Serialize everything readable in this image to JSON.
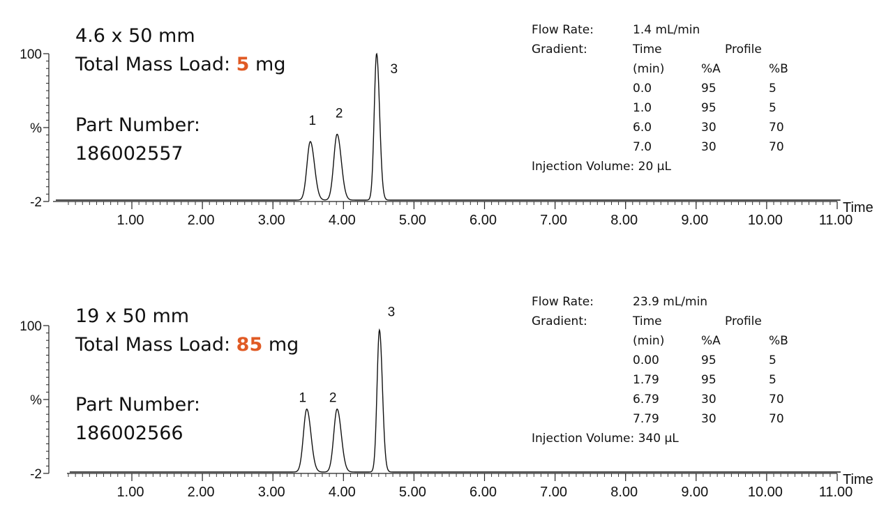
{
  "chart_data": [
    {
      "type": "line",
      "column": "4.6 x 50 mm",
      "mass_load_label": "Total Mass Load: ",
      "mass_load_value": "5",
      "mass_load_unit": " mg",
      "part_number_label": "Part Number:",
      "part_number": "186002557",
      "xlabel": "Time",
      "ylabel": "%",
      "y_ticks": [
        "100",
        "%",
        "-2"
      ],
      "x_ticks": [
        "1.00",
        "2.00",
        "3.00",
        "4.00",
        "5.00",
        "6.00",
        "7.00",
        "8.00",
        "9.00",
        "10.00",
        "11.00"
      ],
      "xlim": [
        0.0,
        11.0
      ],
      "ylim": [
        -2,
        100
      ],
      "series": [
        {
          "peaks": [
            {
              "label": "1",
              "rt": 3.53,
              "height": 40
            },
            {
              "label": "2",
              "rt": 3.91,
              "height": 45
            },
            {
              "label": "3",
              "rt": 4.47,
              "height": 100
            }
          ]
        }
      ],
      "method": {
        "flow_rate_label": "Flow Rate:",
        "flow_rate": "1.4 mL/min",
        "gradient_label": "Gradient:",
        "headers": [
          "Time",
          "Profile"
        ],
        "subheaders": [
          "(min)",
          "%A",
          "%B"
        ],
        "rows": [
          [
            "0.0",
            "95",
            "5"
          ],
          [
            "1.0",
            "95",
            "5"
          ],
          [
            "6.0",
            "30",
            "70"
          ],
          [
            "7.0",
            "30",
            "70"
          ]
        ],
        "injection_volume": "Injection Volume: 20 µL"
      }
    },
    {
      "type": "line",
      "column": "19 x 50 mm",
      "mass_load_label": "Total Mass Load: ",
      "mass_load_value": "85",
      "mass_load_unit": " mg",
      "part_number_label": "Part Number:",
      "part_number": "186002566",
      "xlabel": "Time",
      "ylabel": "%",
      "y_ticks": [
        "100",
        "%",
        "-2"
      ],
      "x_ticks": [
        "1.00",
        "2.00",
        "3.00",
        "4.00",
        "5.00",
        "6.00",
        "7.00",
        "8.00",
        "9.00",
        "10.00",
        "11.00"
      ],
      "xlim": [
        0.0,
        11.0
      ],
      "ylim": [
        -2,
        100
      ],
      "series": [
        {
          "peaks": [
            {
              "label": "1",
              "rt": 3.48,
              "height": 43
            },
            {
              "label": "2",
              "rt": 3.91,
              "height": 43
            },
            {
              "label": "3",
              "rt": 4.51,
              "height": 97
            }
          ]
        }
      ],
      "method": {
        "flow_rate_label": "Flow Rate:",
        "flow_rate": "23.9 mL/min",
        "gradient_label": "Gradient:",
        "headers": [
          "Time",
          "Profile"
        ],
        "subheaders": [
          "(min)",
          "%A",
          "%B"
        ],
        "rows": [
          [
            "0.00",
            "95",
            "5"
          ],
          [
            "1.79",
            "95",
            "5"
          ],
          [
            "6.79",
            "30",
            "70"
          ],
          [
            "7.79",
            "30",
            "70"
          ]
        ],
        "injection_volume": "Injection Volume: 340 µL"
      }
    }
  ]
}
